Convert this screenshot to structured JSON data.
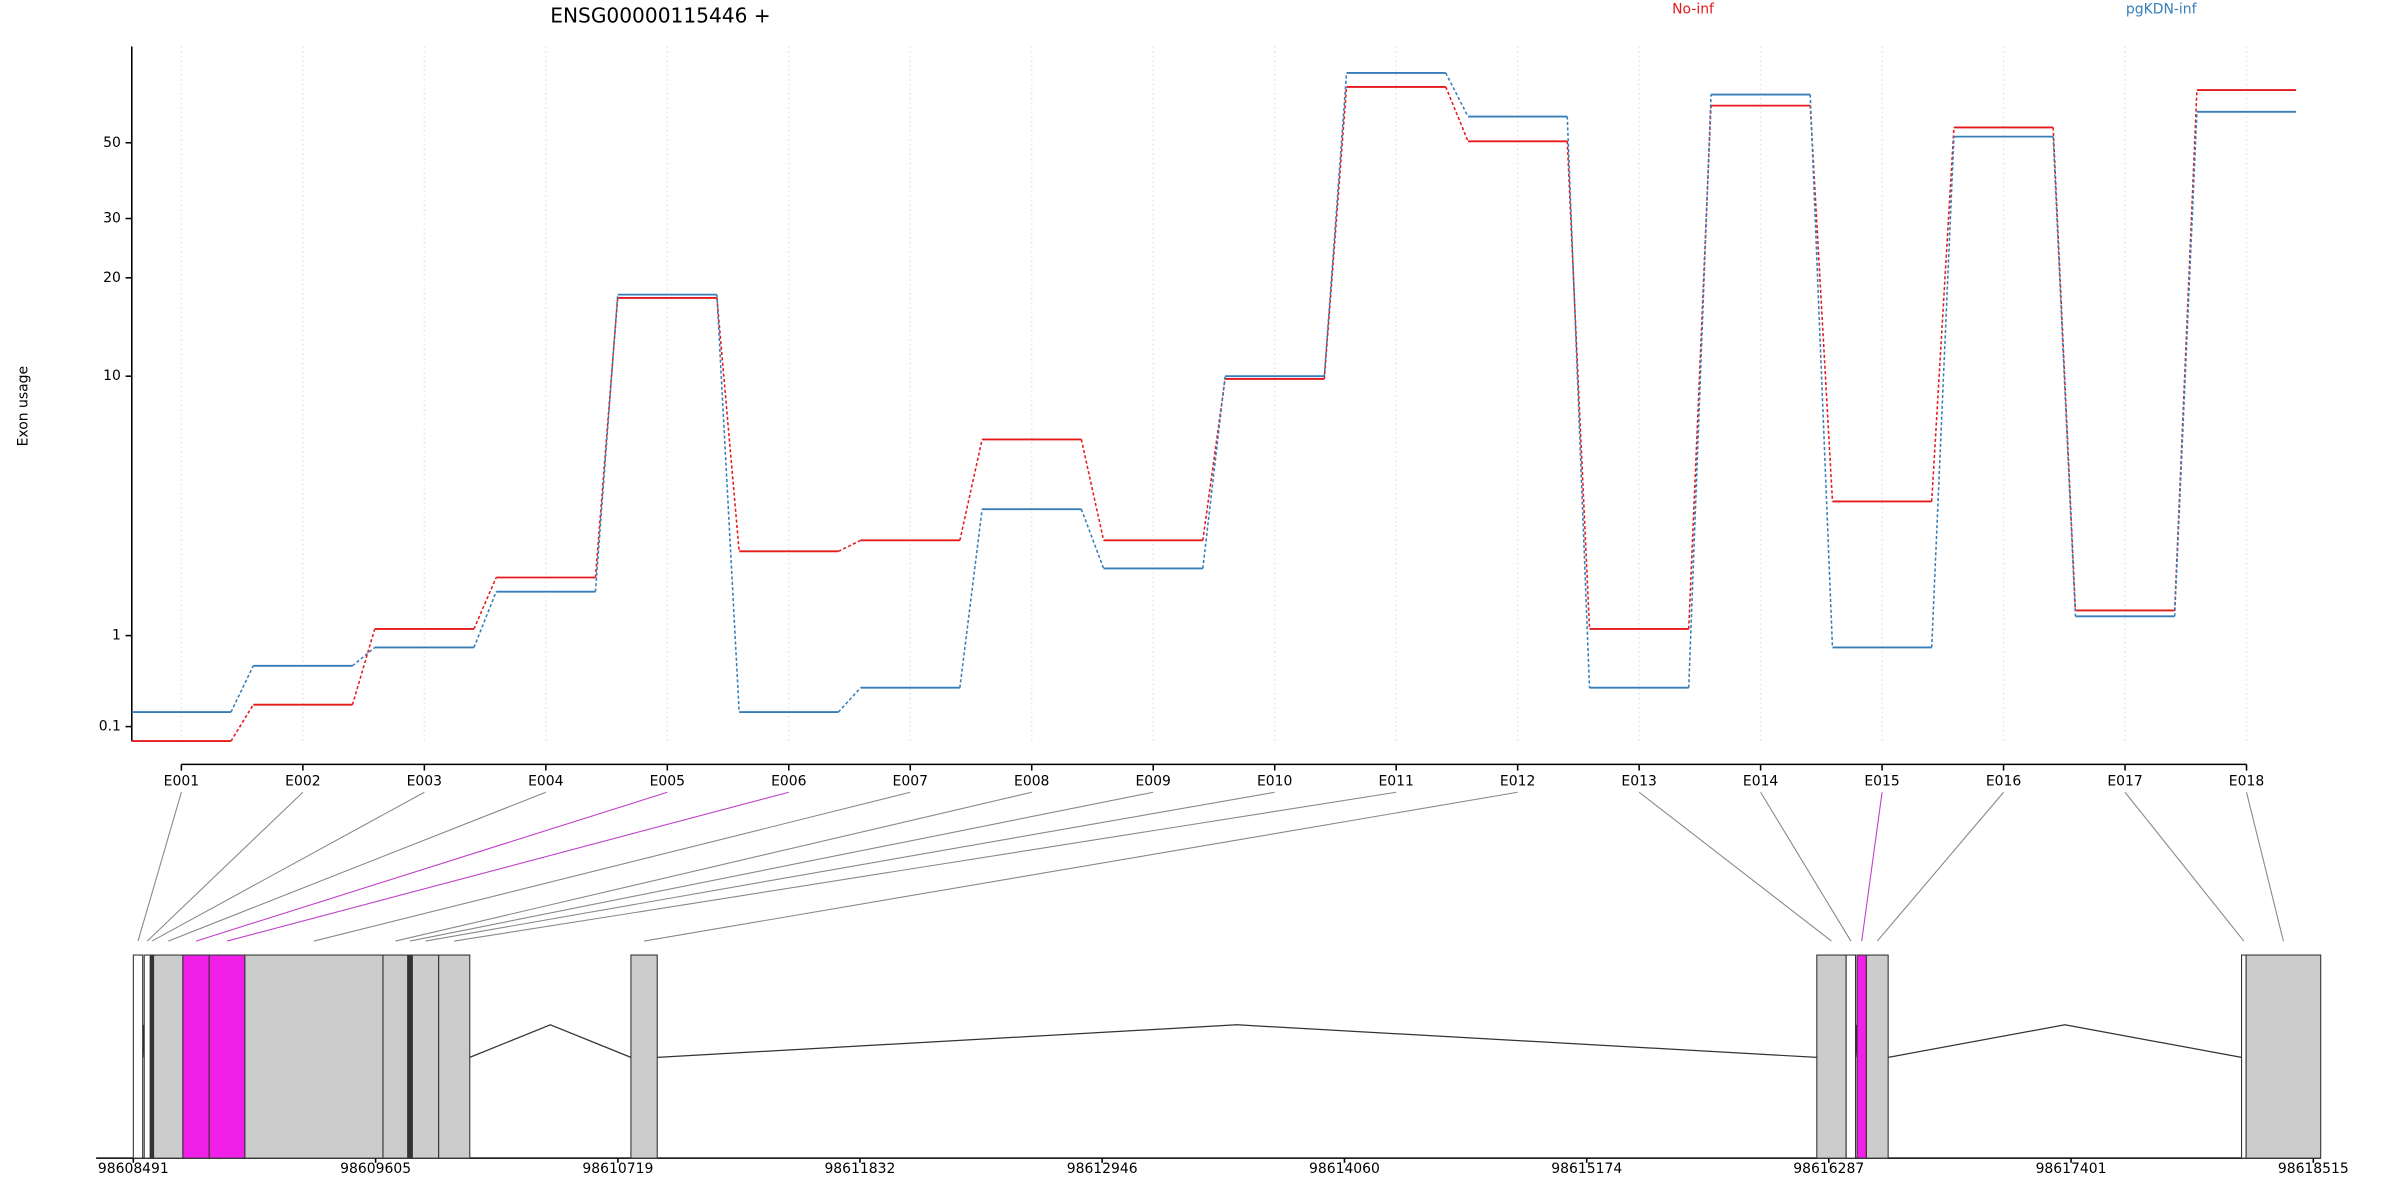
{
  "chart_data": [
    {
      "type": "line",
      "title": "ENSG00000115446 +",
      "y_label": "Exon usage",
      "categories": [
        "E001",
        "E002",
        "E003",
        "E004",
        "E005",
        "E006",
        "E007",
        "E008",
        "E009",
        "E010",
        "E011",
        "E012",
        "E013",
        "E014",
        "E015",
        "E016",
        "E017",
        "E018"
      ],
      "series": [
        {
          "name": "No-inf",
          "color": "#e41a1c",
          "values": [
            0,
            0.27,
            1.09,
            1.93,
            17.4,
            2.48,
            2.74,
            6.26,
            2.74,
            9.8,
            72.6,
            50.5,
            1.09,
            64.1,
            3.83,
            55.4,
            1.36,
            71.1
          ]
        },
        {
          "name": "pgKDN-inf",
          "color": "#377eb8",
          "values": [
            0.21,
            0.64,
            0.85,
            1.67,
            17.8,
            0.21,
            0.42,
            3.59,
            2.11,
            10,
            79.7,
            59.6,
            0.42,
            69,
            0.85,
            52.1,
            1.27,
            61.5
          ]
        }
      ],
      "yscale": "log1p",
      "ylim": [
        0,
        95
      ],
      "yticks": [
        0.1,
        1,
        10,
        20,
        30,
        50
      ],
      "grid": true,
      "legend": "top"
    },
    {
      "type": "gene_model",
      "xlim": [
        98608491,
        98618550
      ],
      "xticks": [
        98608491,
        98609605,
        98610719,
        98611832,
        98612946,
        98614060,
        98615174,
        98616287,
        98617401,
        98618515
      ],
      "starts": [
        98608491,
        98608541,
        98608569,
        98608584,
        98608719,
        98608840,
        98609004,
        98609639,
        98609753,
        98609774,
        98609895,
        98610779,
        98616232,
        98616367,
        98616417,
        98616460,
        98618185,
        98618206
      ],
      "ends": [
        98608534,
        98608569,
        98608584,
        98608719,
        98608840,
        98609004,
        98609639,
        98609753,
        98609774,
        98609895,
        98610038,
        98610900,
        98616367,
        98616410,
        98616460,
        98616560,
        98618206,
        98618549
      ],
      "colors": [
        "#ffffff",
        "#ffffff",
        "#333333",
        "#cccccc",
        "#f020e8",
        "#f020e8",
        "#cccccc",
        "#cccccc",
        "#333333",
        "#cccccc",
        "#cccccc",
        "#cccccc",
        "#cccccc",
        "#ffffff",
        "#f020e8",
        "#cccccc",
        "#ffffff",
        "#cccccc"
      ]
    }
  ]
}
